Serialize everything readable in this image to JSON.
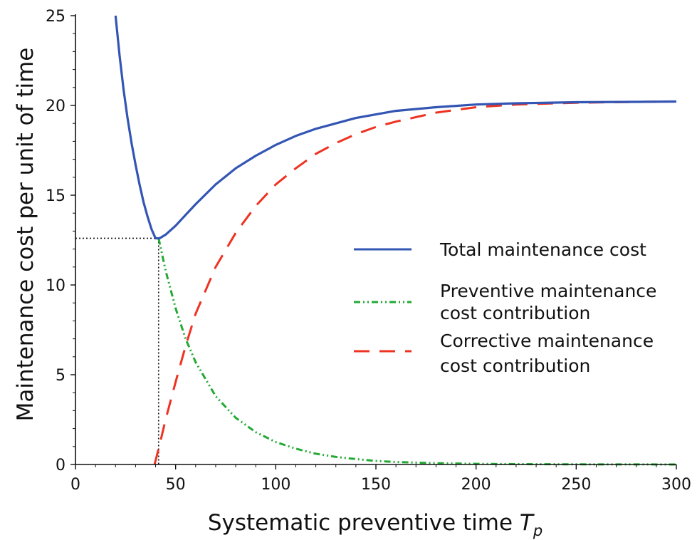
{
  "chart_data": {
    "type": "line",
    "xlabel": "Systematic preventive time",
    "xlabel_symbol": "T",
    "xlabel_subscript": "p",
    "ylabel": "Maintenance cost per unit of time",
    "xlim": [
      0,
      300
    ],
    "ylim": [
      0,
      25
    ],
    "x_ticks": [
      0,
      50,
      100,
      150,
      200,
      250,
      300
    ],
    "y_ticks": [
      0,
      5,
      10,
      15,
      20,
      25
    ],
    "grid": false,
    "legend_position": "right",
    "series": [
      {
        "name": "Total maintenance cost",
        "style": "solid",
        "color": "#3355b3",
        "x": [
          20,
          22,
          24,
          26,
          28,
          30,
          32,
          34,
          36,
          38,
          40,
          42,
          45,
          50,
          55,
          60,
          70,
          80,
          90,
          100,
          110,
          120,
          130,
          140,
          150,
          160,
          180,
          200,
          220,
          250,
          280,
          300
        ],
        "y": [
          25.0,
          22.8,
          20.9,
          19.3,
          17.9,
          16.7,
          15.6,
          14.6,
          13.8,
          13.1,
          12.6,
          12.6,
          12.8,
          13.3,
          13.9,
          14.5,
          15.6,
          16.5,
          17.2,
          17.8,
          18.3,
          18.7,
          19.0,
          19.3,
          19.5,
          19.7,
          19.9,
          20.05,
          20.12,
          20.18,
          20.2,
          20.22
        ]
      },
      {
        "name": "Preventive maintenance cost contribution",
        "name_lines": [
          "Preventive maintenance",
          "cost contribution"
        ],
        "style": "dashdot",
        "color": "#22aa33",
        "x": [
          41.5,
          45,
          50,
          55,
          60,
          70,
          80,
          90,
          100,
          110,
          120,
          130,
          140,
          150,
          160,
          180,
          200,
          220,
          250,
          280,
          300
        ],
        "y": [
          12.6,
          10.8,
          8.7,
          7.0,
          5.7,
          3.8,
          2.6,
          1.8,
          1.25,
          0.88,
          0.6,
          0.42,
          0.3,
          0.2,
          0.14,
          0.07,
          0.035,
          0.018,
          0.008,
          0.003,
          0.0
        ]
      },
      {
        "name": "Corrective maintenance cost contribution",
        "name_lines": [
          "Corrective maintenance",
          "cost contribution"
        ],
        "style": "dashed",
        "color": "#ee3322",
        "x": [
          39.5,
          42,
          45,
          50,
          55,
          60,
          70,
          80,
          90,
          100,
          110,
          120,
          130,
          140,
          150,
          160,
          180,
          200,
          220,
          250,
          280,
          300
        ],
        "y": [
          0.0,
          1.1,
          2.5,
          4.6,
          6.6,
          8.4,
          11.0,
          12.9,
          14.4,
          15.6,
          16.5,
          17.3,
          17.9,
          18.4,
          18.8,
          19.1,
          19.6,
          19.9,
          20.05,
          20.15,
          20.2,
          20.22
        ]
      }
    ],
    "annotations": {
      "optimum": {
        "x": 41.5,
        "y": 12.6
      }
    }
  }
}
